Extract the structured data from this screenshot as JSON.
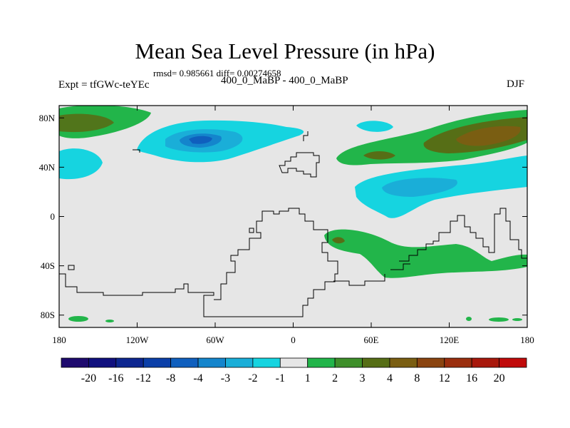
{
  "title": "Mean Sea Level Pressure (in hPa)",
  "stats": "rmsd= 0.985661 diff= 0.00274658",
  "left_label": "Expt = tfGWc-teYEc",
  "center_label": "400_0_MaBP - 400_0_MaBP",
  "right_label": "DJF",
  "map": {
    "background": "#e6e6e6",
    "lat_ticks": [
      {
        "value": 80,
        "label": "80N"
      },
      {
        "value": 40,
        "label": "40N"
      },
      {
        "value": 0,
        "label": "0"
      },
      {
        "value": -40,
        "label": "40S"
      },
      {
        "value": -80,
        "label": "80S"
      }
    ],
    "lon_ticks": [
      {
        "value": -180,
        "label": "180"
      },
      {
        "value": -120,
        "label": "120W"
      },
      {
        "value": -60,
        "label": "60W"
      },
      {
        "value": 0,
        "label": "0"
      },
      {
        "value": 60,
        "label": "60E"
      },
      {
        "value": 120,
        "label": "120E"
      },
      {
        "value": 180,
        "label": "180"
      }
    ]
  },
  "colorbar": {
    "colors": [
      "#1e0a6e",
      "#10107e",
      "#0d2690",
      "#0b3fa8",
      "#0f5fbe",
      "#1485cc",
      "#1aaed8",
      "#16d4e0",
      "#e6e6e6",
      "#22b54a",
      "#3e8f2a",
      "#566e16",
      "#7a5e12",
      "#8a4410",
      "#9a2e0e",
      "#a8180c",
      "#c00a0a"
    ],
    "labels": [
      "-20",
      "-16",
      "-12",
      "-8",
      "-4",
      "-3",
      "-2",
      "-1",
      "1",
      "2",
      "3",
      "4",
      "8",
      "12",
      "16",
      "20"
    ]
  }
}
